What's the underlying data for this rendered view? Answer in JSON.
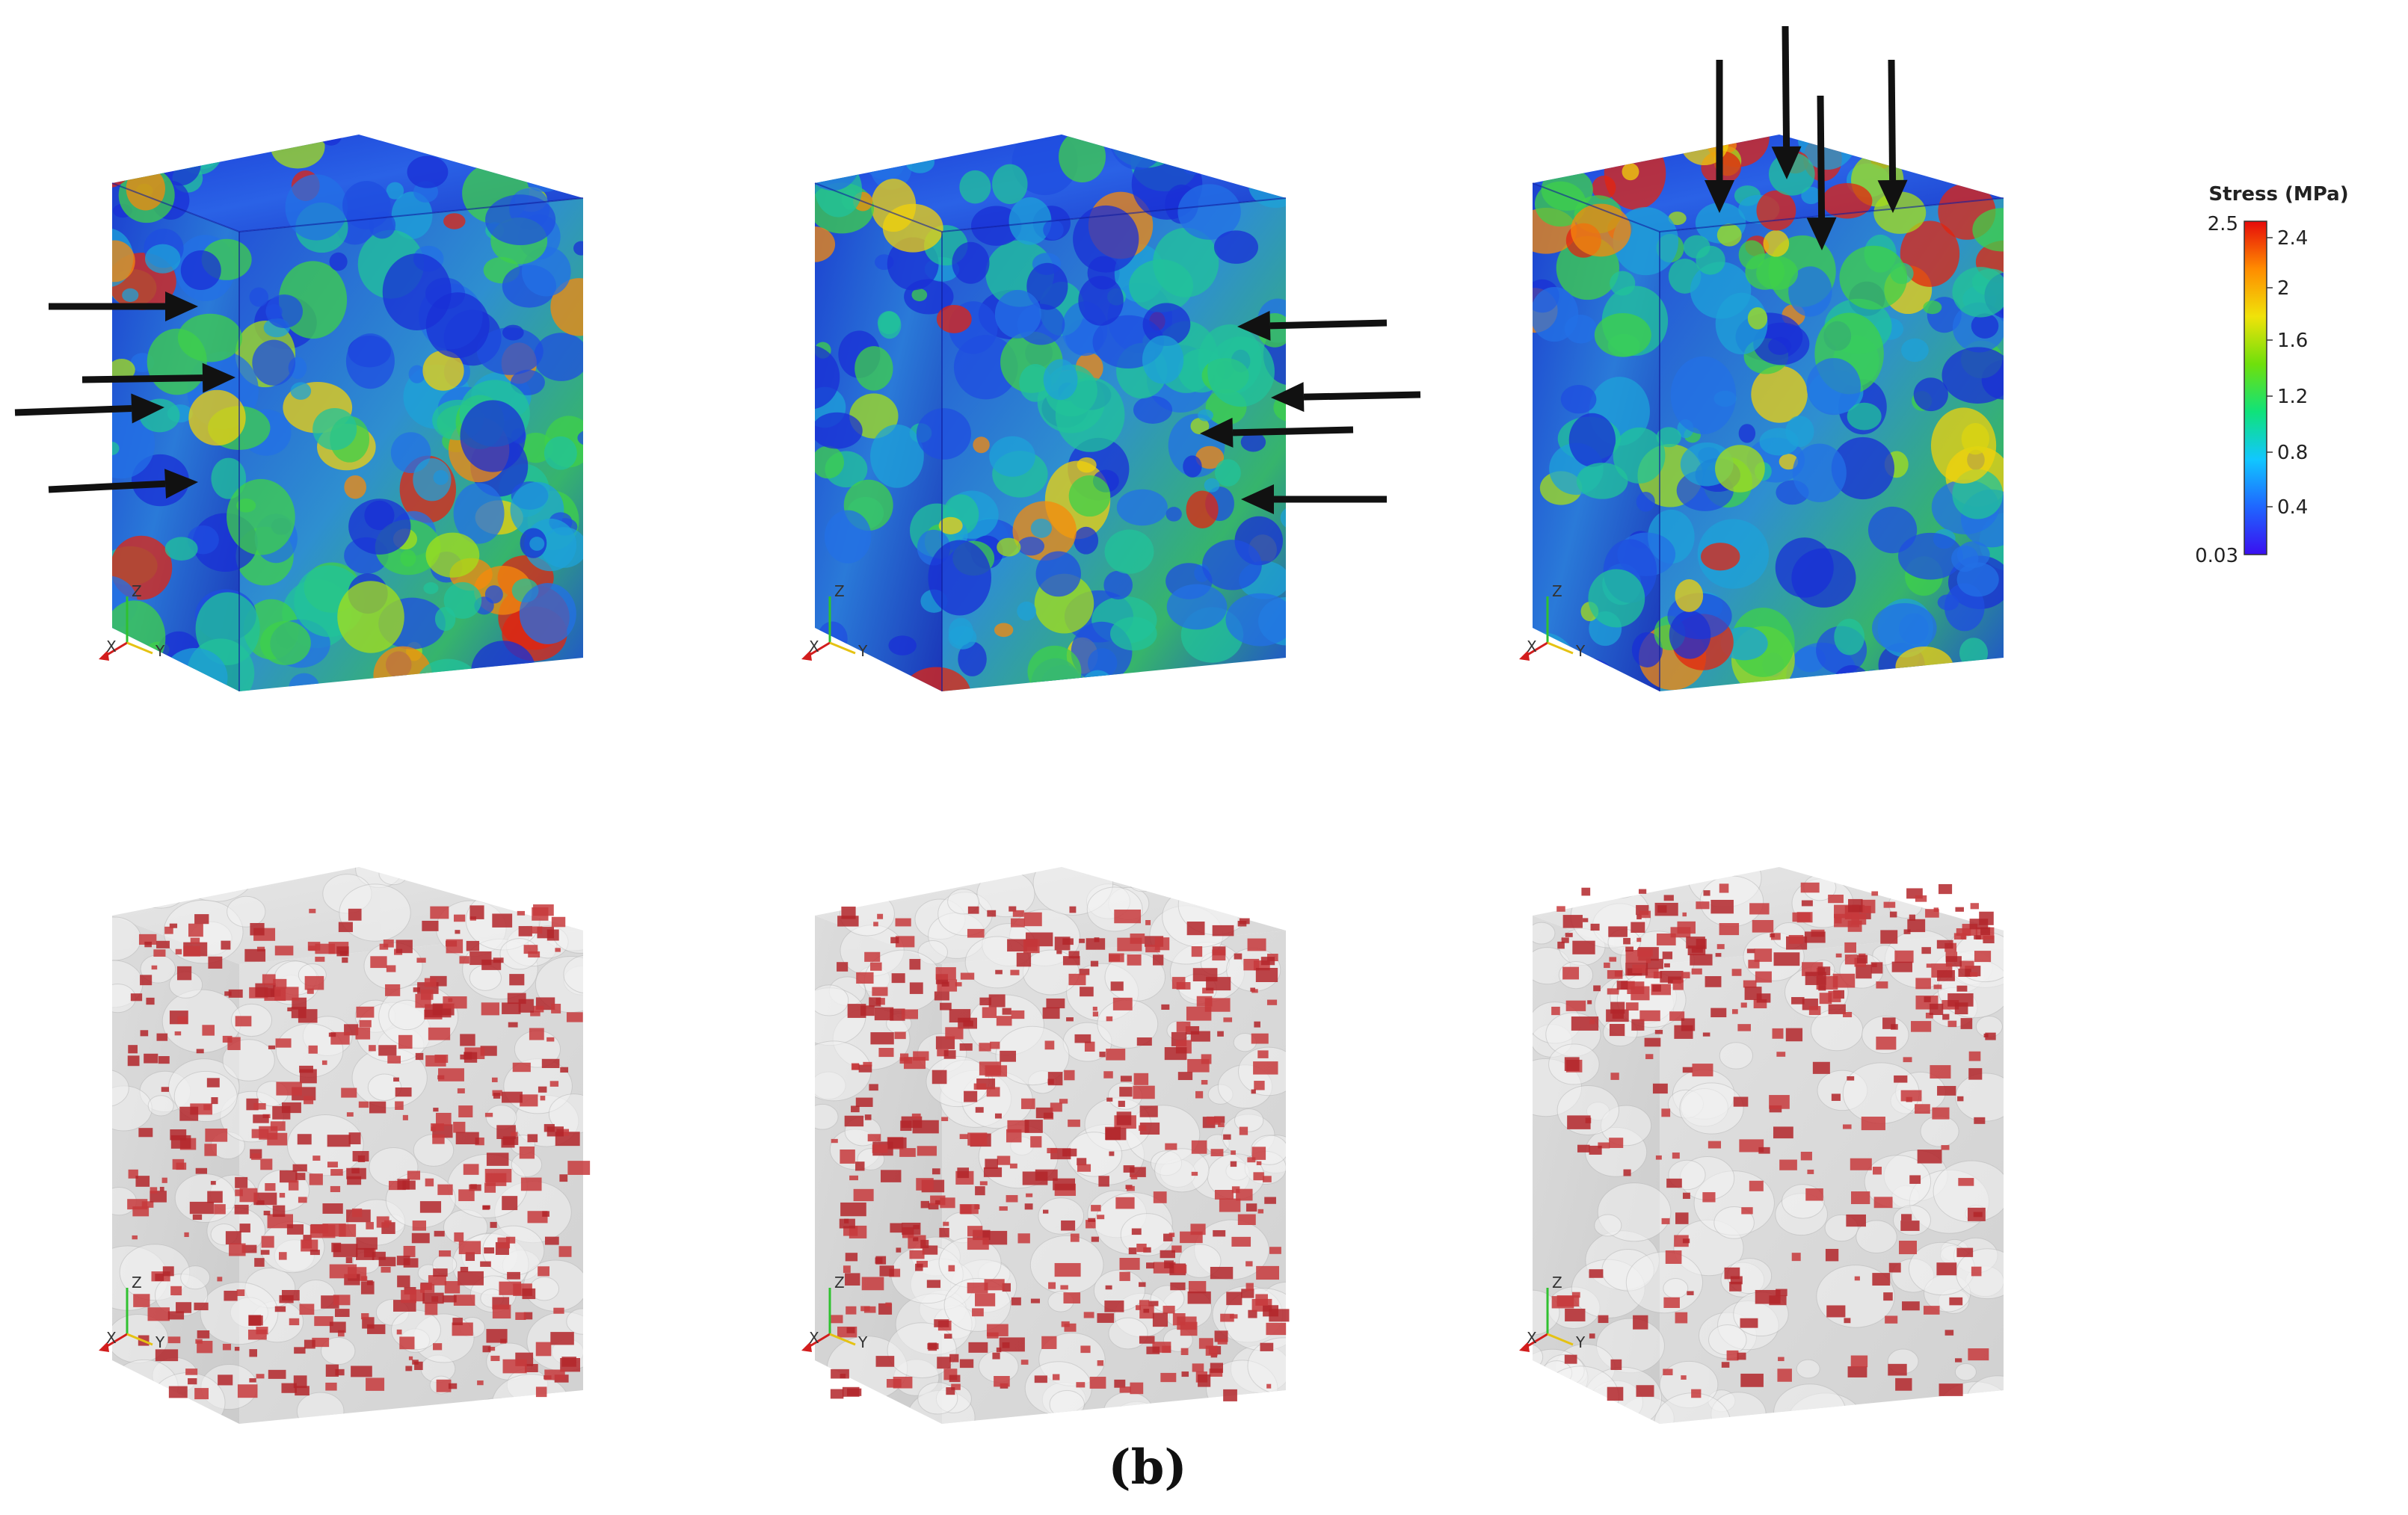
{
  "colorbar": {
    "title": "Stress (MPa)",
    "max_label": "2.5",
    "min_label": "0.03",
    "ticks": [
      "2.4",
      "2",
      "1.6",
      "1.2",
      "0.8",
      "0.4"
    ],
    "colormap": [
      "#3a0ff0",
      "#1f66ff",
      "#11c7ff",
      "#10e27a",
      "#6fe00c",
      "#f0e20a",
      "#ff8c00",
      "#e60a0a"
    ]
  },
  "axis_triad": {
    "x": "X",
    "y": "Y",
    "z": "Z"
  },
  "panel_label": "(b)",
  "colors": {
    "stress_low": "#1a2fd6",
    "stress_mid": "#26b36a",
    "stress_high": "#e3240f",
    "damage": "#b3262a",
    "translucent_solid": "#d9d9d9",
    "arrow": "#111111"
  }
}
